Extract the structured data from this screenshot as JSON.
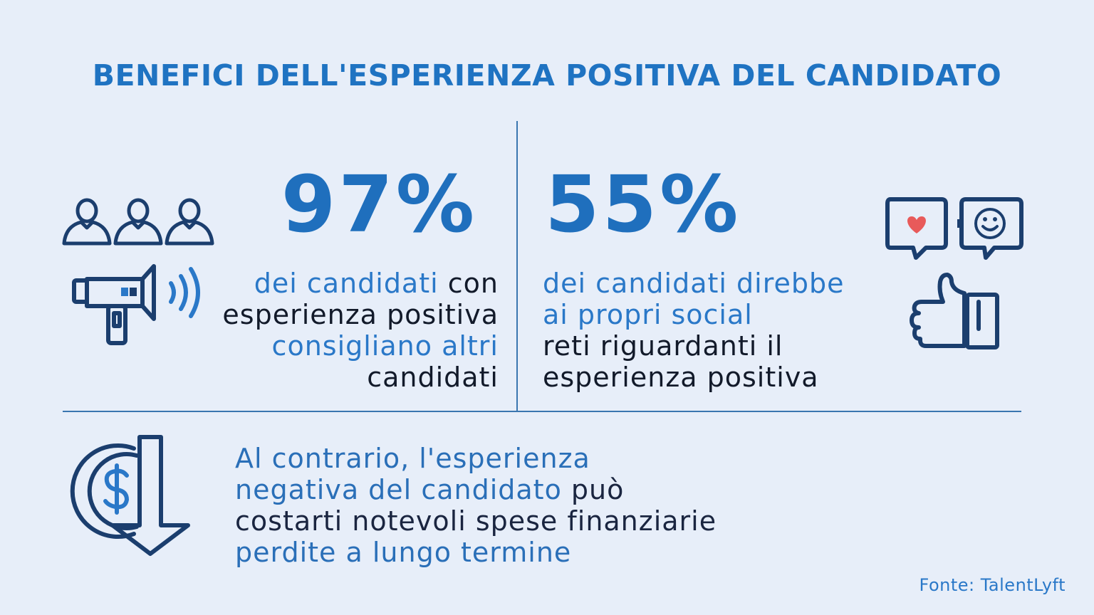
{
  "title": "BENEFICI DELL'ESPERIENZA POSITIVA DEL CANDIDATO",
  "stat_left": {
    "value": "97%",
    "line1_blue": "dei candidati",
    "line1_black": " con",
    "line2": "esperienza positiva",
    "line3": "consigliano altri",
    "line4": "candidati"
  },
  "stat_right": {
    "value": "55%",
    "line1": "dei candidati direbbe",
    "line2": "ai propri social",
    "line3": "reti riguardanti il",
    "line4": "esperienza positiva"
  },
  "bottom": {
    "line1": "Al contrario, l'esperienza",
    "line2_blue": "negativa del candidato",
    "line2_dark": " può",
    "line3": "costarti notevoli spese finanziarie",
    "line4": "perdite a lungo termine"
  },
  "source": "Fonte: TalentLyft",
  "icons": [
    "people-icon",
    "megaphone-icon",
    "heart-chat-icon",
    "smiley-chat-icon",
    "thumbs-up-icon",
    "dollar-down-icon"
  ],
  "colors": {
    "background": "#e7eef9",
    "accent": "#1f73c2",
    "icon": "#1b3e6e",
    "heart": "#e85a5a"
  }
}
